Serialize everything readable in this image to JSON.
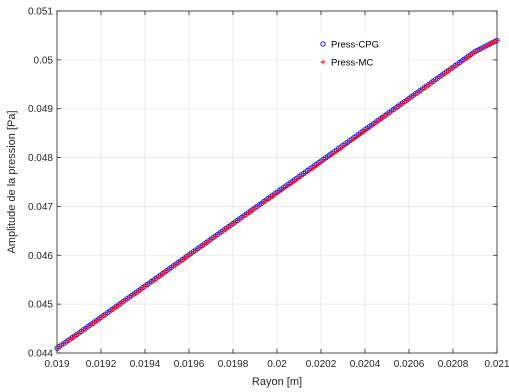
{
  "chart_data": {
    "type": "scatter",
    "title": "",
    "xlabel": "Rayon [m]",
    "ylabel": "Amplitude de la pression [Pa]",
    "xlim": [
      0.019,
      0.021
    ],
    "ylim": [
      0.044,
      0.051
    ],
    "grid": true,
    "legend_position": "top-right",
    "x_ticks": [
      "0.019",
      "0.0192",
      "0.0194",
      "0.0196",
      "0.0198",
      "0.02",
      "0.0202",
      "0.0204",
      "0.0206",
      "0.0208",
      "0.021"
    ],
    "y_ticks": [
      "0.044",
      "0.045",
      "0.046",
      "0.047",
      "0.048",
      "0.049",
      "0.05",
      "0.051"
    ],
    "series": [
      {
        "name": "Press-CPG",
        "marker": "circle",
        "color": "#0000ff",
        "x": [
          0.019,
          0.0191,
          0.0192,
          0.0193,
          0.0194,
          0.0195,
          0.0196,
          0.0197,
          0.0198,
          0.0199,
          0.02,
          0.0201,
          0.0202,
          0.0203,
          0.0204,
          0.0205,
          0.0206,
          0.0207,
          0.0208,
          0.0209,
          0.021
        ],
        "y": [
          0.0441,
          0.04441,
          0.04473,
          0.04505,
          0.04537,
          0.04569,
          0.04601,
          0.04633,
          0.04665,
          0.04697,
          0.04729,
          0.04761,
          0.04793,
          0.04825,
          0.04857,
          0.04889,
          0.04921,
          0.04953,
          0.04985,
          0.05017,
          0.0504
        ]
      },
      {
        "name": "Press-MC",
        "marker": "plus",
        "color": "#ff0000",
        "x": [
          0.019,
          0.0191,
          0.0192,
          0.0193,
          0.0194,
          0.0195,
          0.0196,
          0.0197,
          0.0198,
          0.0199,
          0.02,
          0.0201,
          0.0202,
          0.0203,
          0.0204,
          0.0205,
          0.0206,
          0.0207,
          0.0208,
          0.0209,
          0.021
        ],
        "y": [
          0.0441,
          0.0444,
          0.04472,
          0.04504,
          0.04536,
          0.04568,
          0.046,
          0.04632,
          0.04664,
          0.04696,
          0.04727,
          0.04758,
          0.0479,
          0.04822,
          0.04855,
          0.04888,
          0.0492,
          0.04952,
          0.04984,
          0.05016,
          0.0504
        ]
      }
    ]
  }
}
